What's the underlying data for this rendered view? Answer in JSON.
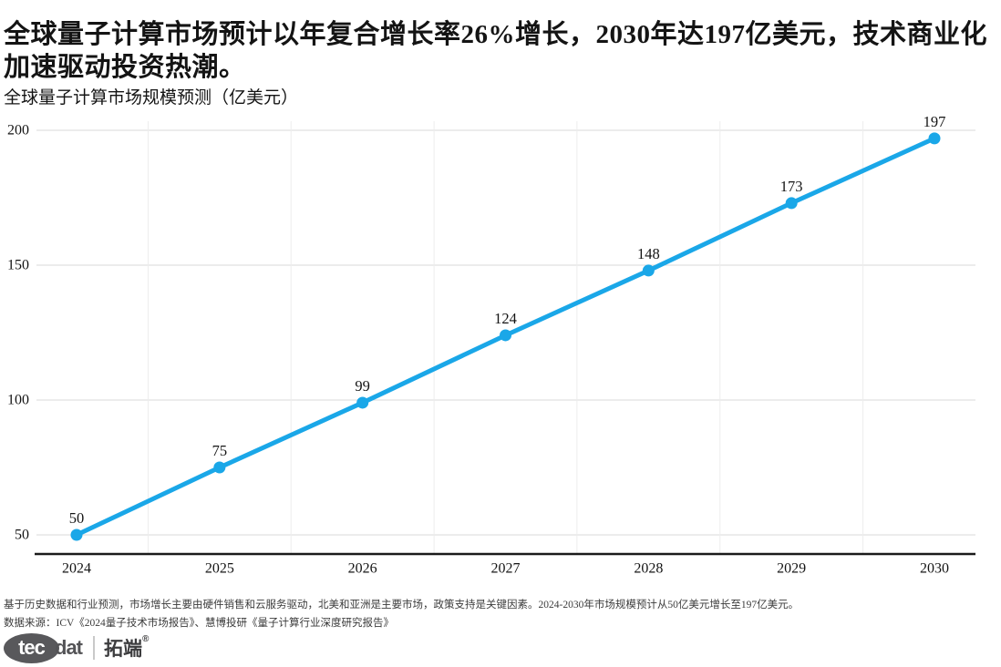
{
  "page": {
    "headline": "全球量子计算市场预计以年复合增长率26%增长，2030年达197亿美元，技术商业化加速驱动投资热潮。",
    "footnote": "基于历史数据和行业预测，市场增长主要由硬件销售和云服务驱动，北美和亚洲是主要市场，政策支持是关键因素。2024-2030年市场规模预计从50亿美元增长至197亿美元。",
    "source": "数据来源：ICV《2024量子技术市场报告》、慧博投研《量子计算行业深度研究报告》",
    "logo": {
      "part1": "tec",
      "part2": "dat",
      "brand_cn": "拓端",
      "registered": "®"
    }
  },
  "chart_data": {
    "type": "line",
    "title": "全球量子计算市场规模预测（亿美元）",
    "categories": [
      "2024",
      "2025",
      "2026",
      "2027",
      "2028",
      "2029",
      "2030"
    ],
    "values": [
      50,
      75,
      99,
      124,
      148,
      173,
      197
    ],
    "xlabel": "",
    "ylabel": "",
    "ylim": [
      50,
      200
    ],
    "yticks": [
      50,
      100,
      150,
      200
    ],
    "grid": true,
    "legend": "none",
    "data_labels": true,
    "line_color": "#1aa7e8",
    "marker": "circle",
    "gridline_color": "#d9d9d9",
    "axis_color": "#1a1a1a"
  }
}
